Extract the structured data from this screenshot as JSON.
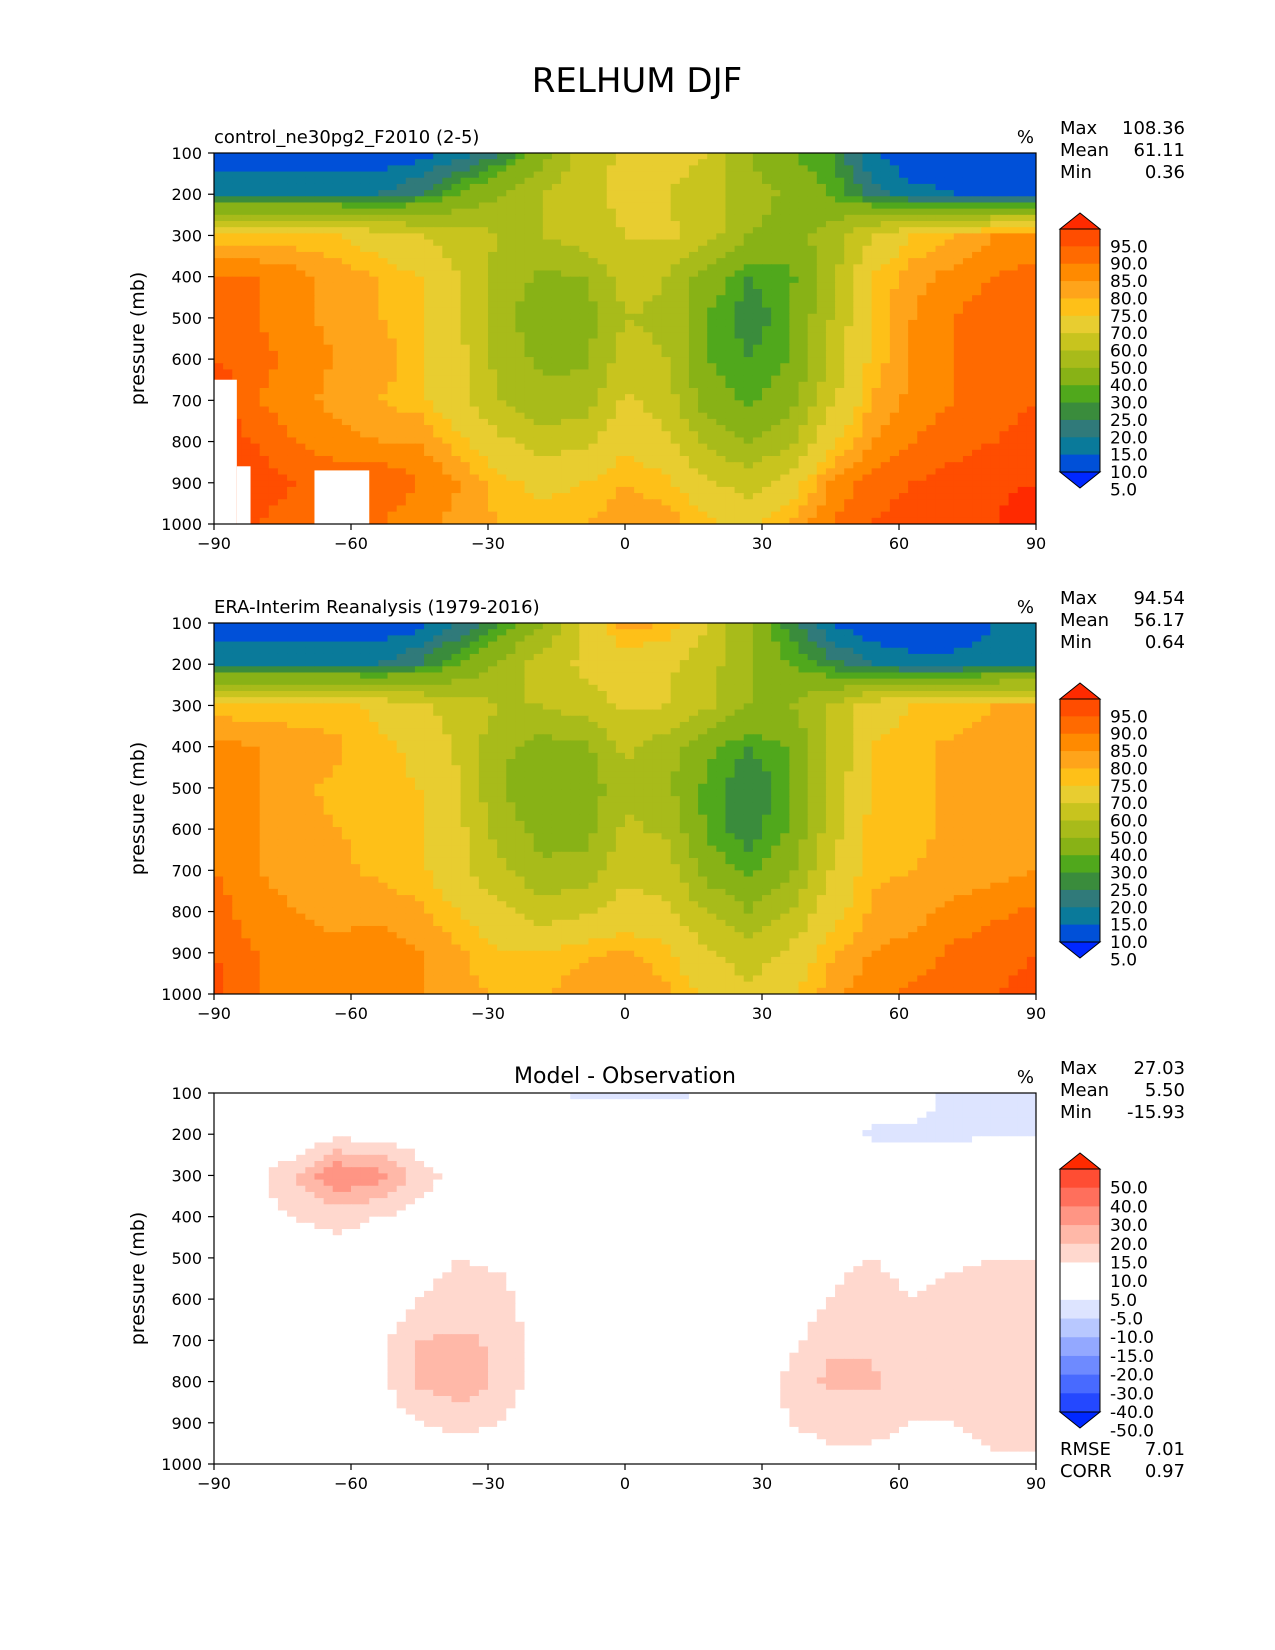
{
  "figure": {
    "title": "RELHUM DJF"
  },
  "chart_data": [
    {
      "type": "heatmap",
      "title": "control_ne30pg2_F2010 (2-5)",
      "units": "%",
      "ylabel": "pressure (mb)",
      "xlabel": "",
      "xlim": [
        -90,
        90
      ],
      "ylim": [
        1000,
        100
      ],
      "x_ticks": [
        -90,
        -60,
        -30,
        0,
        30,
        60,
        90
      ],
      "x_tick_labels": [
        "−90",
        "−60",
        "−30",
        "0",
        "30",
        "60",
        "90"
      ],
      "y_ticks": [
        100,
        200,
        300,
        400,
        500,
        600,
        700,
        800,
        900,
        1000
      ],
      "y_tick_labels": [
        "100",
        "200",
        "300",
        "400",
        "500",
        "600",
        "700",
        "800",
        "900",
        "1000"
      ],
      "stats": [
        {
          "label": "Max",
          "value": "108.36"
        },
        {
          "label": "Mean",
          "value": "61.11"
        },
        {
          "label": "Min",
          "value": "0.36"
        }
      ],
      "colorbar": {
        "levels": [
          "95.0",
          "90.0",
          "85.0",
          "80.0",
          "75.0",
          "70.0",
          "60.0",
          "50.0",
          "40.0",
          "30.0",
          "25.0",
          "20.0",
          "15.0",
          "10.0",
          "5.0"
        ],
        "colors": [
          "#ff2a00",
          "#ff4d00",
          "#ff6a00",
          "#ff8a00",
          "#ffa41a",
          "#fec018",
          "#e8cd30",
          "#c8c41e",
          "#a8bb1a",
          "#88b216",
          "#50a81c",
          "#3a8c3c",
          "#307a7a",
          "#0a7a9a",
          "#0050d8",
          "#0028ff"
        ]
      },
      "field": {
        "rows": [
          [
            5,
            5,
            5,
            5,
            5,
            8,
            12,
            20,
            35,
            55,
            62,
            65,
            60,
            40,
            30,
            25,
            10,
            5,
            5,
            5,
            5
          ],
          [
            15,
            15,
            15,
            15,
            15,
            20,
            30,
            40,
            50,
            58,
            62,
            60,
            55,
            45,
            38,
            30,
            18,
            12,
            10,
            10,
            10
          ],
          [
            72,
            72,
            72,
            70,
            65,
            60,
            55,
            50,
            50,
            55,
            60,
            62,
            55,
            40,
            35,
            45,
            60,
            70,
            75,
            80,
            80
          ],
          [
            85,
            85,
            82,
            78,
            75,
            70,
            60,
            45,
            38,
            40,
            55,
            50,
            35,
            25,
            28,
            45,
            70,
            78,
            82,
            85,
            88
          ],
          [
            88,
            85,
            82,
            78,
            75,
            72,
            62,
            42,
            35,
            35,
            50,
            48,
            30,
            22,
            28,
            50,
            72,
            80,
            85,
            88,
            88
          ],
          [
            90,
            88,
            82,
            80,
            78,
            72,
            62,
            45,
            38,
            38,
            55,
            50,
            30,
            25,
            30,
            52,
            72,
            80,
            85,
            88,
            88
          ],
          [
            95,
            85,
            82,
            78,
            75,
            72,
            62,
            50,
            42,
            45,
            62,
            55,
            35,
            28,
            35,
            58,
            75,
            82,
            85,
            88,
            90
          ],
          [
            92,
            90,
            85,
            82,
            80,
            80,
            72,
            62,
            55,
            58,
            68,
            62,
            48,
            40,
            48,
            68,
            80,
            85,
            88,
            90,
            92
          ],
          [
            92,
            92,
            90,
            88,
            90,
            85,
            80,
            72,
            68,
            70,
            75,
            72,
            62,
            55,
            65,
            80,
            88,
            90,
            92,
            94,
            95
          ],
          [
            92,
            90,
            88,
            85,
            85,
            82,
            78,
            75,
            72,
            75,
            78,
            78,
            72,
            68,
            75,
            85,
            90,
            92,
            94,
            95,
            98
          ]
        ],
        "mask": [
          {
            "lon": [
              -90,
              -85
            ],
            "pres": [
              650,
              1000
            ]
          },
          {
            "lon": [
              -85,
              -82
            ],
            "pres": [
              860,
              1000
            ]
          },
          {
            "lon": [
              -68,
              -56
            ],
            "pres": [
              870,
              1000
            ]
          }
        ]
      }
    },
    {
      "type": "heatmap",
      "title": "ERA-Interim Reanalysis (1979-2016)",
      "units": "%",
      "ylabel": "pressure (mb)",
      "xlabel": "",
      "xlim": [
        -90,
        90
      ],
      "ylim": [
        1000,
        100
      ],
      "x_ticks": [
        -90,
        -60,
        -30,
        0,
        30,
        60,
        90
      ],
      "x_tick_labels": [
        "−90",
        "−60",
        "−30",
        "0",
        "30",
        "60",
        "90"
      ],
      "y_ticks": [
        100,
        200,
        300,
        400,
        500,
        600,
        700,
        800,
        900,
        1000
      ],
      "y_tick_labels": [
        "100",
        "200",
        "300",
        "400",
        "500",
        "600",
        "700",
        "800",
        "900",
        "1000"
      ],
      "stats": [
        {
          "label": "Max",
          "value": "94.54"
        },
        {
          "label": "Mean",
          "value": "56.17"
        },
        {
          "label": "Min",
          "value": "0.64"
        }
      ],
      "colorbar": {
        "levels": [
          "95.0",
          "90.0",
          "85.0",
          "80.0",
          "75.0",
          "70.0",
          "60.0",
          "50.0",
          "40.0",
          "30.0",
          "25.0",
          "20.0",
          "15.0",
          "10.0",
          "5.0"
        ],
        "colors": [
          "#ff2a00",
          "#ff4d00",
          "#ff6a00",
          "#ff8a00",
          "#ffa41a",
          "#fec018",
          "#e8cd30",
          "#c8c41e",
          "#a8bb1a",
          "#88b216",
          "#50a81c",
          "#3a8c3c",
          "#307a7a",
          "#0a7a9a",
          "#0050d8",
          "#0028ff"
        ]
      },
      "field": {
        "rows": [
          [
            5,
            5,
            5,
            5,
            5,
            8,
            15,
            25,
            40,
            62,
            78,
            75,
            60,
            40,
            22,
            10,
            5,
            5,
            5,
            10,
            12
          ],
          [
            15,
            15,
            15,
            15,
            15,
            20,
            30,
            42,
            55,
            62,
            65,
            62,
            55,
            40,
            30,
            22,
            15,
            12,
            12,
            14,
            15
          ],
          [
            72,
            72,
            72,
            72,
            68,
            62,
            55,
            50,
            50,
            55,
            62,
            60,
            52,
            40,
            40,
            50,
            65,
            70,
            72,
            75,
            75
          ],
          [
            82,
            80,
            78,
            76,
            72,
            68,
            58,
            42,
            36,
            38,
            52,
            45,
            32,
            25,
            30,
            50,
            70,
            74,
            76,
            78,
            80
          ],
          [
            82,
            80,
            76,
            74,
            72,
            70,
            60,
            40,
            32,
            32,
            48,
            42,
            28,
            20,
            28,
            52,
            72,
            74,
            76,
            76,
            78
          ],
          [
            82,
            80,
            76,
            75,
            74,
            70,
            62,
            45,
            36,
            36,
            52,
            48,
            28,
            22,
            30,
            55,
            72,
            74,
            76,
            76,
            78
          ],
          [
            85,
            80,
            78,
            76,
            74,
            72,
            62,
            52,
            42,
            44,
            58,
            55,
            35,
            28,
            38,
            60,
            74,
            75,
            76,
            78,
            80
          ],
          [
            88,
            82,
            80,
            78,
            78,
            76,
            70,
            62,
            55,
            58,
            64,
            62,
            50,
            40,
            50,
            66,
            76,
            78,
            82,
            84,
            86
          ],
          [
            90,
            85,
            82,
            82,
            84,
            80,
            76,
            70,
            70,
            74,
            76,
            72,
            62,
            55,
            62,
            74,
            80,
            82,
            86,
            88,
            90
          ],
          [
            92,
            85,
            82,
            82,
            84,
            80,
            76,
            75,
            75,
            78,
            80,
            76,
            68,
            62,
            68,
            78,
            84,
            86,
            88,
            90,
            92
          ]
        ],
        "mask": []
      }
    },
    {
      "type": "heatmap",
      "title": "Model - Observation",
      "units": "%",
      "ylabel": "pressure (mb)",
      "xlabel": "",
      "xlim": [
        -90,
        90
      ],
      "ylim": [
        1000,
        100
      ],
      "x_ticks": [
        -90,
        -60,
        -30,
        0,
        30,
        60,
        90
      ],
      "x_tick_labels": [
        "−90",
        "−60",
        "−30",
        "0",
        "30",
        "60",
        "90"
      ],
      "y_ticks": [
        100,
        200,
        300,
        400,
        500,
        600,
        700,
        800,
        900,
        1000
      ],
      "y_tick_labels": [
        "100",
        "200",
        "300",
        "400",
        "500",
        "600",
        "700",
        "800",
        "900",
        "1000"
      ],
      "stats": [
        {
          "label": "Max",
          "value": "27.03"
        },
        {
          "label": "Mean",
          "value": "5.50"
        },
        {
          "label": "Min",
          "value": "-15.93"
        }
      ],
      "footer_stats": [
        {
          "label": "RMSE",
          "value": "7.01"
        },
        {
          "label": "CORR",
          "value": "0.97"
        }
      ],
      "colorbar": {
        "levels": [
          "50.0",
          "40.0",
          "30.0",
          "20.0",
          "15.0",
          "10.0",
          "5.0",
          "-5.0",
          "-10.0",
          "-15.0",
          "-20.0",
          "-30.0",
          "-40.0",
          "-50.0"
        ],
        "colors": [
          "#ff2a00",
          "#ff4d33",
          "#ff6f5c",
          "#ff9584",
          "#ffb8a8",
          "#ffd8ce",
          "#ffffff",
          "#ffffff",
          "#dde4ff",
          "#b8c8ff",
          "#93a8ff",
          "#6e8aff",
          "#486aff",
          "#2448ff",
          "#0028ff"
        ]
      },
      "field": {
        "rows": [
          [
            0,
            0,
            0,
            0,
            0,
            0,
            0,
            0,
            -5,
            -6,
            -6,
            -6,
            -5,
            -2,
            0,
            0,
            0,
            0,
            -8,
            -8,
            -8
          ],
          [
            0,
            3,
            4,
            8,
            8,
            7,
            5,
            5,
            5,
            4,
            2,
            0,
            0,
            0,
            0,
            0,
            -6,
            -7,
            -7,
            -7,
            -7
          ],
          [
            4,
            8,
            15,
            25,
            22,
            12,
            8,
            8,
            8,
            5,
            0,
            0,
            0,
            0,
            0,
            0,
            0,
            2,
            8,
            10,
            10
          ],
          [
            6,
            8,
            10,
            12,
            10,
            8,
            8,
            7,
            6,
            3,
            0,
            0,
            0,
            0,
            0,
            6,
            7,
            7,
            7,
            8,
            8
          ],
          [
            7,
            8,
            8,
            7,
            6,
            8,
            10,
            9,
            5,
            0,
            0,
            0,
            0,
            0,
            6,
            9,
            10,
            8,
            9,
            10,
            10
          ],
          [
            10,
            7,
            6,
            5,
            6,
            10,
            12,
            12,
            6,
            0,
            0,
            0,
            0,
            0,
            6,
            10,
            12,
            10,
            12,
            12,
            12
          ],
          [
            5,
            4,
            5,
            6,
            8,
            15,
            16,
            14,
            6,
            0,
            0,
            0,
            0,
            0,
            8,
            14,
            14,
            12,
            12,
            12,
            12
          ],
          [
            4,
            3,
            3,
            4,
            8,
            16,
            18,
            14,
            6,
            0,
            0,
            0,
            0,
            4,
            12,
            16,
            16,
            12,
            12,
            12,
            12
          ],
          [
            4,
            6,
            6,
            5,
            6,
            10,
            12,
            10,
            5,
            0,
            -4,
            0,
            0,
            6,
            10,
            12,
            12,
            10,
            10,
            12,
            12
          ],
          [
            3,
            5,
            6,
            6,
            3,
            5,
            4,
            4,
            6,
            4,
            0,
            3,
            4,
            5,
            7,
            8,
            8,
            7,
            8,
            9,
            9
          ]
        ],
        "mask": [
          {
            "lon": [
              -68,
              -56
            ],
            "pres": [
              870,
              1000
            ]
          }
        ]
      }
    }
  ]
}
